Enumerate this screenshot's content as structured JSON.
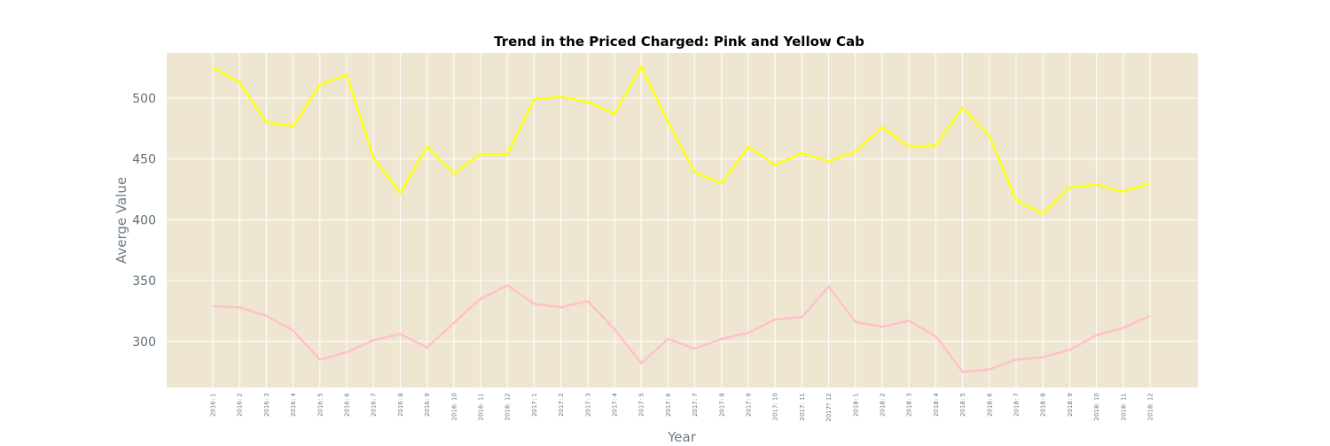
{
  "chart_data": {
    "type": "line",
    "title": "Trend in the Priced Charged: Pink and Yellow Cab",
    "xlabel": "Year",
    "ylabel": "Averge Value",
    "ylim": [
      262,
      537
    ],
    "yticks": [
      300,
      350,
      400,
      450,
      500
    ],
    "grid": true,
    "legend": "none",
    "colors": {
      "background": "#efe6d2",
      "grid": "#ffffff",
      "axis_text": "#6b7b86"
    },
    "categories": [
      "2016: 1",
      "2016: 2",
      "2016: 3",
      "2016: 4",
      "2016: 5",
      "2016: 6",
      "2016: 7",
      "2016: 8",
      "2016: 9",
      "2016: 10",
      "2016: 11",
      "2016: 12",
      "2017: 1",
      "2017: 2",
      "2017: 3",
      "2017: 4",
      "2017: 5",
      "2017: 6",
      "2017: 7",
      "2017: 8",
      "2017: 9",
      "2017: 10",
      "2017: 11",
      "2017? 12",
      "2018: 1",
      "2018: 2",
      "2018: 3",
      "2018: 4",
      "2018: 5",
      "2018: 6",
      "2018: 7",
      "2018: 8",
      "2018: 9",
      "2018: 10",
      "2018: 11",
      "2018: 12"
    ],
    "series": [
      {
        "color": "#ffff14",
        "values": [
          525,
          513,
          480,
          477,
          511,
          519,
          451,
          422,
          460,
          438,
          454,
          454,
          499,
          501,
          497,
          487,
          526,
          480,
          439,
          430,
          460,
          445,
          455,
          448,
          456,
          476,
          460,
          461,
          492,
          469,
          416,
          405,
          427,
          429,
          423,
          430
        ]
      },
      {
        "color": "#ffc0cb",
        "values": [
          329,
          328,
          321,
          309,
          285,
          291,
          301,
          306,
          295,
          315,
          335,
          346,
          331,
          328,
          333,
          310,
          282,
          302,
          294,
          302,
          307,
          318,
          320,
          345,
          316,
          312,
          317,
          304,
          275,
          277,
          285,
          287,
          293,
          305,
          311,
          321
        ]
      }
    ]
  }
}
